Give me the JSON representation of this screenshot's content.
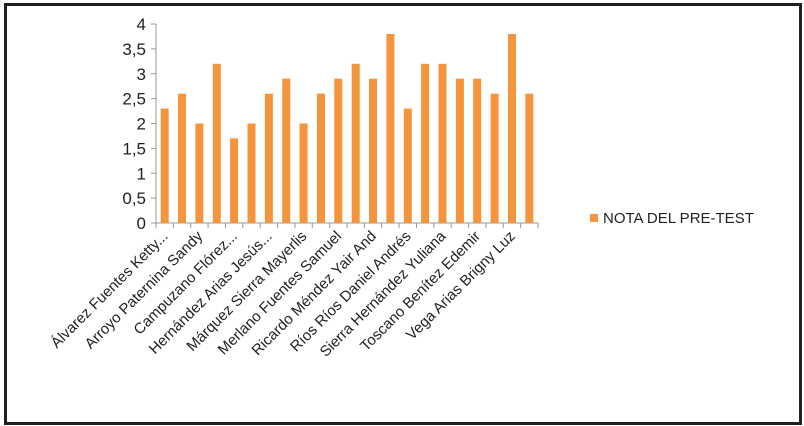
{
  "chart_data": {
    "type": "bar",
    "title": "",
    "xlabel": "",
    "ylabel": "",
    "ylim": [
      0,
      4
    ],
    "yticks": [
      "0",
      "0,5",
      "1",
      "1,5",
      "2",
      "2,5",
      "3",
      "3,5",
      "4"
    ],
    "grid": false,
    "legend_position": "right",
    "color": "#F4943C",
    "categories": [
      "Álvarez Fuentes Ketty...",
      "",
      "Arroyo Paternina Sandy",
      "",
      "Campuzano Flórez...",
      "",
      "Hernández Arias Jesús...",
      "",
      "Márquez Sierra Mayerlis",
      "",
      "Merlano Fuentes Samuel",
      "",
      "Ricardo Méndez Yair And",
      "",
      "Ríos Ríos Daniel Andrés",
      "",
      "Sierra Hernández Yuliana",
      "",
      "Toscano Benítez Edemir",
      "",
      "Vega Arias Brigny Luz",
      ""
    ],
    "series": [
      {
        "name": "NOTA DEL PRE-TEST",
        "values": [
          2.3,
          2.6,
          2.0,
          3.2,
          1.7,
          2.0,
          2.6,
          2.9,
          2.0,
          2.6,
          2.9,
          3.2,
          2.9,
          3.8,
          2.3,
          3.2,
          3.2,
          2.9,
          2.9,
          2.6,
          3.8,
          2.6
        ]
      }
    ]
  }
}
